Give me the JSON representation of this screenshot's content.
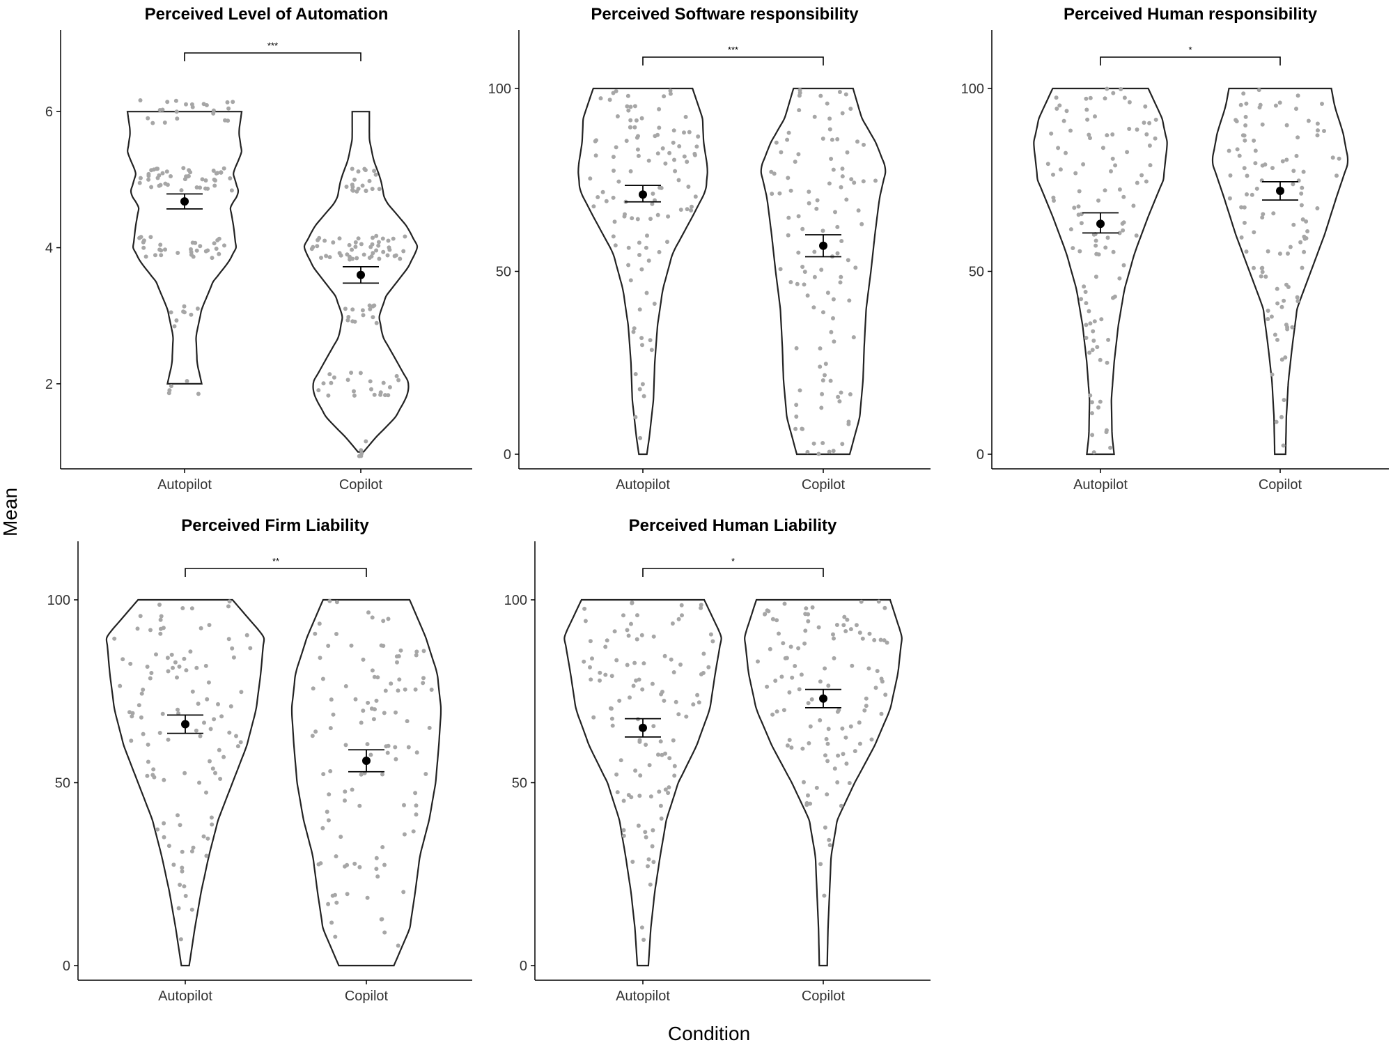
{
  "figure": {
    "xlabel": "Condition",
    "ylabel": "Mean"
  },
  "colors": {
    "violin": "#222222",
    "jitter": "#a6a6a6",
    "mean": "#000000",
    "axis": "#000000"
  },
  "chart_data": [
    {
      "type": "violin",
      "title": "Perceived Level of Automation",
      "categories": [
        "Autopilot",
        "Copilot"
      ],
      "yticks": [
        2,
        4,
        6
      ],
      "ylim": [
        0.75,
        7.2
      ],
      "significance": "***",
      "series": [
        {
          "name": "Autopilot",
          "min": 2,
          "max": 6,
          "mean": 4.68,
          "ci": [
            4.57,
            4.79
          ],
          "density": [
            [
              2,
              0.3
            ],
            [
              2.3,
              0.22
            ],
            [
              2.7,
              0.2
            ],
            [
              3.1,
              0.3
            ],
            [
              3.5,
              0.5
            ],
            [
              3.8,
              0.78
            ],
            [
              4.0,
              0.9
            ],
            [
              4.3,
              0.86
            ],
            [
              4.6,
              0.8
            ],
            [
              4.8,
              0.95
            ],
            [
              5.1,
              0.85
            ],
            [
              5.4,
              1.0
            ],
            [
              5.7,
              0.95
            ],
            [
              6.0,
              1.0
            ]
          ]
        },
        {
          "name": "Copilot",
          "min": 1,
          "max": 6,
          "mean": 3.6,
          "ci": [
            3.48,
            3.72
          ],
          "density": [
            [
              1.0,
              0.05
            ],
            [
              1.2,
              0.25
            ],
            [
              1.5,
              0.6
            ],
            [
              1.8,
              0.8
            ],
            [
              2.0,
              0.85
            ],
            [
              2.3,
              0.65
            ],
            [
              2.7,
              0.38
            ],
            [
              3.0,
              0.32
            ],
            [
              3.3,
              0.45
            ],
            [
              3.7,
              0.82
            ],
            [
              4.0,
              1.0
            ],
            [
              4.3,
              0.82
            ],
            [
              4.7,
              0.42
            ],
            [
              5.0,
              0.35
            ],
            [
              5.3,
              0.22
            ],
            [
              5.6,
              0.15
            ],
            [
              6.0,
              0.15
            ]
          ]
        }
      ]
    },
    {
      "type": "violin",
      "title": "Perceived Software responsibility",
      "categories": [
        "Autopilot",
        "Copilot"
      ],
      "yticks": [
        0,
        50,
        100
      ],
      "ylim": [
        -4,
        116
      ],
      "significance": "***",
      "series": [
        {
          "name": "Autopilot",
          "min": 0,
          "max": 100,
          "mean": 71,
          "ci": [
            69,
            73.5
          ],
          "density": [
            [
              0,
              0.06
            ],
            [
              5,
              0.1
            ],
            [
              15,
              0.16
            ],
            [
              25,
              0.18
            ],
            [
              35,
              0.22
            ],
            [
              45,
              0.3
            ],
            [
              55,
              0.45
            ],
            [
              65,
              0.75
            ],
            [
              72,
              0.95
            ],
            [
              78,
              0.98
            ],
            [
              85,
              0.92
            ],
            [
              92,
              0.9
            ],
            [
              100,
              0.75
            ]
          ]
        },
        {
          "name": "Copilot",
          "min": 0,
          "max": 100,
          "mean": 57,
          "ci": [
            54,
            60
          ],
          "density": [
            [
              0,
              0.4
            ],
            [
              10,
              0.55
            ],
            [
              20,
              0.6
            ],
            [
              30,
              0.62
            ],
            [
              40,
              0.65
            ],
            [
              50,
              0.72
            ],
            [
              60,
              0.78
            ],
            [
              70,
              0.85
            ],
            [
              78,
              0.95
            ],
            [
              85,
              0.8
            ],
            [
              92,
              0.58
            ],
            [
              100,
              0.45
            ]
          ]
        }
      ]
    },
    {
      "type": "violin",
      "title": "Perceived Human responsibility",
      "categories": [
        "Autopilot",
        "Copilot"
      ],
      "yticks": [
        0,
        50,
        100
      ],
      "ylim": [
        -4,
        116
      ],
      "significance": "*",
      "series": [
        {
          "name": "Autopilot",
          "min": 0,
          "max": 100,
          "mean": 63,
          "ci": [
            60.5,
            66
          ],
          "density": [
            [
              0,
              0.2
            ],
            [
              5,
              0.17
            ],
            [
              15,
              0.16
            ],
            [
              25,
              0.2
            ],
            [
              35,
              0.26
            ],
            [
              45,
              0.35
            ],
            [
              55,
              0.5
            ],
            [
              65,
              0.7
            ],
            [
              75,
              0.92
            ],
            [
              85,
              0.98
            ],
            [
              92,
              0.9
            ],
            [
              100,
              0.7
            ]
          ]
        },
        {
          "name": "Copilot",
          "min": 0,
          "max": 100,
          "mean": 72,
          "ci": [
            69.5,
            74.5
          ],
          "density": [
            [
              0,
              0.08
            ],
            [
              10,
              0.09
            ],
            [
              20,
              0.12
            ],
            [
              30,
              0.18
            ],
            [
              40,
              0.25
            ],
            [
              50,
              0.45
            ],
            [
              60,
              0.65
            ],
            [
              70,
              0.82
            ],
            [
              80,
              1.0
            ],
            [
              88,
              0.92
            ],
            [
              95,
              0.8
            ],
            [
              100,
              0.75
            ]
          ]
        }
      ]
    },
    {
      "type": "violin",
      "title": "Perceived Firm Liability",
      "categories": [
        "Autopilot",
        "Copilot"
      ],
      "yticks": [
        0,
        50,
        100
      ],
      "ylim": [
        -4,
        116
      ],
      "significance": "**",
      "series": [
        {
          "name": "Autopilot",
          "min": 0,
          "max": 100,
          "mean": 66,
          "ci": [
            63.5,
            68.5
          ],
          "density": [
            [
              0,
              0.05
            ],
            [
              10,
              0.12
            ],
            [
              20,
              0.2
            ],
            [
              30,
              0.3
            ],
            [
              40,
              0.42
            ],
            [
              50,
              0.6
            ],
            [
              60,
              0.78
            ],
            [
              70,
              0.9
            ],
            [
              80,
              0.96
            ],
            [
              90,
              1.0
            ],
            [
              100,
              0.6
            ]
          ]
        },
        {
          "name": "Copilot",
          "min": 0,
          "max": 100,
          "mean": 56,
          "ci": [
            53,
            59
          ],
          "density": [
            [
              0,
              0.35
            ],
            [
              10,
              0.55
            ],
            [
              20,
              0.62
            ],
            [
              30,
              0.68
            ],
            [
              40,
              0.8
            ],
            [
              50,
              0.88
            ],
            [
              60,
              0.92
            ],
            [
              70,
              0.95
            ],
            [
              80,
              0.9
            ],
            [
              90,
              0.75
            ],
            [
              100,
              0.55
            ]
          ]
        }
      ]
    },
    {
      "type": "violin",
      "title": "Perceived Human Liability",
      "categories": [
        "Autopilot",
        "Copilot"
      ],
      "yticks": [
        0,
        50,
        100
      ],
      "ylim": [
        -4,
        116
      ],
      "significance": "*",
      "series": [
        {
          "name": "Autopilot",
          "min": 0,
          "max": 100,
          "mean": 65,
          "ci": [
            62.5,
            67.5
          ],
          "density": [
            [
              0,
              0.07
            ],
            [
              10,
              0.1
            ],
            [
              20,
              0.15
            ],
            [
              30,
              0.22
            ],
            [
              40,
              0.3
            ],
            [
              50,
              0.45
            ],
            [
              60,
              0.68
            ],
            [
              70,
              0.85
            ],
            [
              80,
              0.92
            ],
            [
              90,
              1.0
            ],
            [
              100,
              0.78
            ]
          ]
        },
        {
          "name": "Copilot",
          "min": 0,
          "max": 100,
          "mean": 73,
          "ci": [
            70.5,
            75.5
          ],
          "density": [
            [
              0,
              0.05
            ],
            [
              10,
              0.06
            ],
            [
              20,
              0.08
            ],
            [
              30,
              0.1
            ],
            [
              40,
              0.18
            ],
            [
              50,
              0.4
            ],
            [
              60,
              0.65
            ],
            [
              70,
              0.85
            ],
            [
              80,
              0.95
            ],
            [
              90,
              1.0
            ],
            [
              100,
              0.85
            ]
          ]
        }
      ]
    }
  ]
}
